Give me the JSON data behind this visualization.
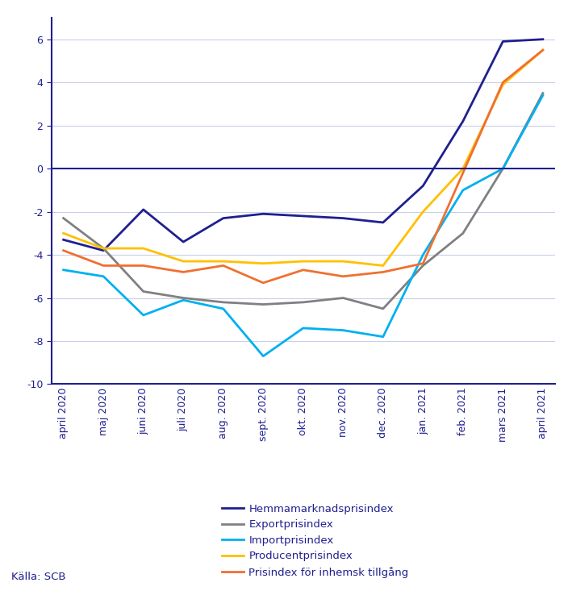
{
  "x_labels": [
    "april 2020",
    "maj 2020",
    "juni 2020",
    "juli 2020",
    "aug. 2020",
    "sept. 2020",
    "okt. 2020",
    "nov. 2020",
    "dec. 2020",
    "jan. 2021",
    "feb. 2021",
    "mars 2021",
    "april 2021"
  ],
  "series": {
    "Hemmamarknadsprisindex": {
      "color": "#1f1f8f",
      "values": [
        -3.3,
        -3.8,
        -1.9,
        -3.4,
        -2.3,
        -2.1,
        -2.2,
        -2.3,
        -2.5,
        -0.8,
        2.2,
        5.9,
        6.0
      ]
    },
    "Exportprisindex": {
      "color": "#808080",
      "values": [
        -2.3,
        -3.7,
        -5.7,
        -6.0,
        -6.2,
        -6.3,
        -6.2,
        -6.0,
        -6.5,
        -4.5,
        -3.0,
        0.0,
        3.5
      ]
    },
    "Importprisindex": {
      "color": "#00b0f0",
      "values": [
        -4.7,
        -5.0,
        -6.8,
        -6.1,
        -6.5,
        -8.7,
        -7.4,
        -7.5,
        -7.8,
        -4.0,
        -1.0,
        0.0,
        3.4
      ]
    },
    "Producentprisindex": {
      "color": "#ffc000",
      "values": [
        -3.0,
        -3.7,
        -3.7,
        -4.3,
        -4.3,
        -4.4,
        -4.3,
        -4.3,
        -4.5,
        -2.0,
        0.0,
        3.9,
        5.5
      ]
    },
    "Prisindex för inhemsk tillgång": {
      "color": "#f07030",
      "values": [
        -3.8,
        -4.5,
        -4.5,
        -4.8,
        -4.5,
        -5.3,
        -4.7,
        -5.0,
        -4.8,
        -4.4,
        -0.2,
        4.0,
        5.5
      ]
    }
  },
  "ylim": [
    -10,
    7
  ],
  "yticks": [
    -10,
    -8,
    -6,
    -4,
    -2,
    0,
    2,
    4,
    6
  ],
  "source_text": "Källa: SCB",
  "background_color": "#ffffff",
  "plot_bg_color": "#ffffff",
  "grid_color": "#c8cfe8",
  "axis_color": "#1f1f8f",
  "zero_line_color": "#1f1f8f",
  "legend_order": [
    "Hemmamarknadsprisindex",
    "Exportprisindex",
    "Importprisindex",
    "Producentprisindex",
    "Prisindex för inhemsk tillgång"
  ]
}
